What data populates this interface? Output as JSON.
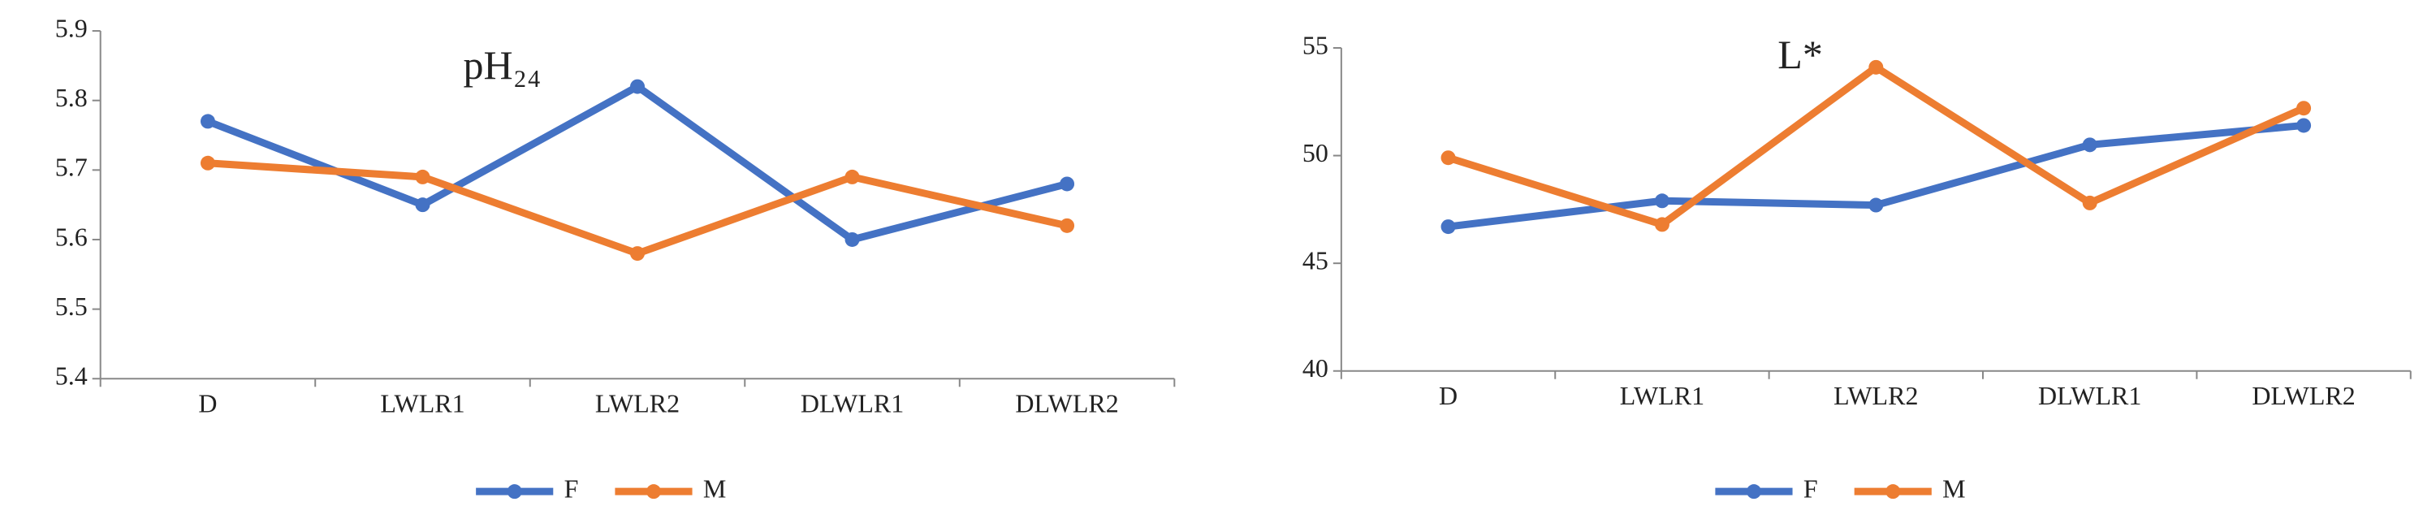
{
  "chart_data": [
    {
      "type": "line",
      "title": "pH₂₄",
      "categories": [
        "D",
        "LWLR1",
        "LWLR2",
        "DLWLR1",
        "DLWLR2"
      ],
      "series": [
        {
          "name": "F",
          "color": "#4472c4",
          "values": [
            5.77,
            5.65,
            5.82,
            5.6,
            5.68
          ]
        },
        {
          "name": "M",
          "color": "#ed7d31",
          "values": [
            5.71,
            5.69,
            5.58,
            5.69,
            5.62
          ]
        }
      ],
      "ylim": [
        5.4,
        5.9
      ],
      "yticks": [
        5.4,
        5.5,
        5.6,
        5.7,
        5.8,
        5.9
      ]
    },
    {
      "type": "line",
      "title": "L*",
      "categories": [
        "D",
        "LWLR1",
        "LWLR2",
        "DLWLR1",
        "DLWLR2"
      ],
      "series": [
        {
          "name": "F",
          "color": "#4472c4",
          "values": [
            46.7,
            47.9,
            47.7,
            50.5,
            51.4
          ]
        },
        {
          "name": "M",
          "color": "#ed7d31",
          "values": [
            49.9,
            46.8,
            54.1,
            47.8,
            52.2
          ]
        }
      ],
      "ylim": [
        40,
        55
      ],
      "yticks": [
        40,
        45,
        50,
        55
      ]
    }
  ]
}
